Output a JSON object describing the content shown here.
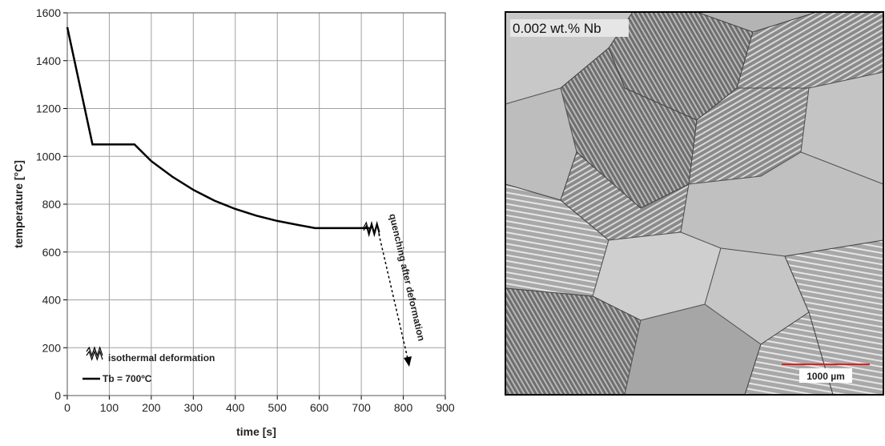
{
  "chart_data": {
    "type": "line",
    "xlabel": "time [s]",
    "ylabel": "temperature [°C]",
    "x": [
      0,
      60,
      160,
      200,
      250,
      300,
      350,
      400,
      450,
      500,
      550,
      590,
      720
    ],
    "series": [
      {
        "name": "Tb = 700ºC",
        "color": "#000000",
        "values": [
          1540,
          1050,
          1050,
          980,
          915,
          860,
          815,
          780,
          752,
          730,
          713,
          700,
          700
        ]
      }
    ],
    "xlim": [
      0,
      900
    ],
    "xticks": [
      0,
      100,
      200,
      300,
      400,
      500,
      600,
      700,
      800,
      900
    ],
    "ylim": [
      0,
      1600
    ],
    "yticks": [
      0,
      200,
      400,
      600,
      800,
      1000,
      1200,
      1400,
      1600
    ],
    "grid": true,
    "annotations": [
      "isothermal deformation",
      "quenching after deformation"
    ]
  },
  "micrograph": {
    "label": "0.002 wt.% Nb",
    "scale_bar": "1000 µm"
  }
}
